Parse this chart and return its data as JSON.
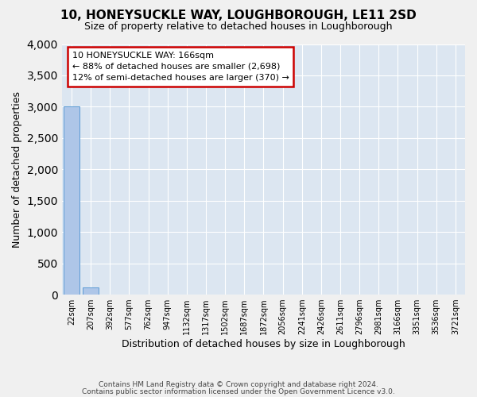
{
  "title": "10, HONEYSUCKLE WAY, LOUGHBOROUGH, LE11 2SD",
  "subtitle": "Size of property relative to detached houses in Loughborough",
  "xlabel": "Distribution of detached houses by size in Loughborough",
  "ylabel": "Number of detached properties",
  "bin_labels": [
    "22sqm",
    "207sqm",
    "392sqm",
    "577sqm",
    "762sqm",
    "947sqm",
    "1132sqm",
    "1317sqm",
    "1502sqm",
    "1687sqm",
    "1872sqm",
    "2056sqm",
    "2241sqm",
    "2426sqm",
    "2611sqm",
    "2796sqm",
    "2981sqm",
    "3166sqm",
    "3351sqm",
    "3536sqm",
    "3721sqm"
  ],
  "bar_heights": [
    3000,
    120,
    0,
    0,
    0,
    0,
    0,
    0,
    0,
    0,
    0,
    0,
    0,
    0,
    0,
    0,
    0,
    0,
    0,
    0,
    0
  ],
  "bar_color": "#aec6e8",
  "bar_edge_color": "#5b9bd5",
  "ylim": [
    0,
    4000
  ],
  "yticks": [
    0,
    500,
    1000,
    1500,
    2000,
    2500,
    3000,
    3500,
    4000
  ],
  "annotation_text": "10 HONEYSUCKLE WAY: 166sqm\n← 88% of detached houses are smaller (2,698)\n12% of semi-detached houses are larger (370) →",
  "annotation_box_color": "#ffffff",
  "annotation_border_color": "#cc0000",
  "footer_line1": "Contains HM Land Registry data © Crown copyright and database right 2024.",
  "footer_line2": "Contains public sector information licensed under the Open Government Licence v3.0.",
  "plot_bg_color": "#dce6f1",
  "fig_bg_color": "#f0f0f0",
  "grid_color": "#ffffff"
}
